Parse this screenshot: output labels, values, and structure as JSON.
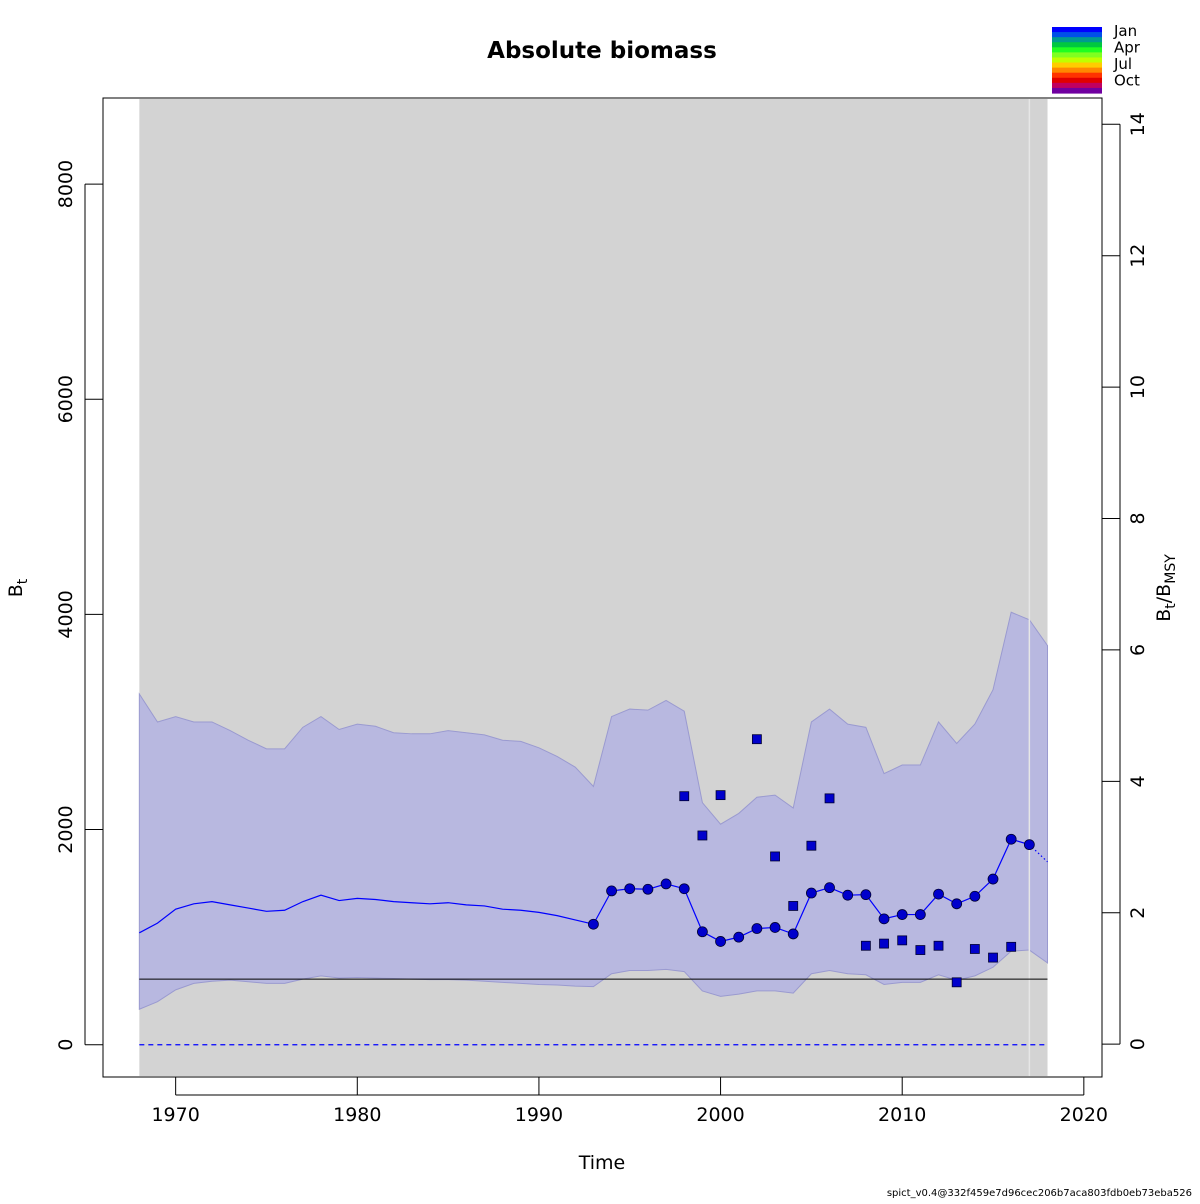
{
  "chart_data": {
    "type": "line",
    "title": "Absolute biomass",
    "xlabel": "Time",
    "ylabel": {
      "main": "B",
      "sub": "t"
    },
    "ylabel_right": {
      "main": "B",
      "sub": "t",
      "slash": "/",
      "main2": "B",
      "sub2": "MSY"
    },
    "xlim": [
      1966,
      2021
    ],
    "ylim": [
      -300,
      8800
    ],
    "ylim_right": [
      -0.5,
      14.4
    ],
    "x_ticks": [
      1970,
      1980,
      1990,
      2000,
      2010,
      2020
    ],
    "y_ticks": [
      0,
      2000,
      4000,
      6000,
      8000
    ],
    "y_ticks_right": [
      0,
      2,
      4,
      6,
      8,
      10,
      12,
      14
    ],
    "grey_region": {
      "x": [
        1968,
        2018
      ],
      "color": "#d3d3d3"
    },
    "vline_x": 2017,
    "bmsy_line": 610,
    "zero_line": 0,
    "estimate": {
      "x": [
        1968,
        1969,
        1970,
        1971,
        1972,
        1973,
        1974,
        1975,
        1976,
        1977,
        1978,
        1979,
        1980,
        1981,
        1982,
        1983,
        1984,
        1985,
        1986,
        1987,
        1988,
        1989,
        1990,
        1991,
        1992,
        1993,
        1994,
        1995,
        1996,
        1997,
        1998,
        1999,
        2000,
        2001,
        2002,
        2003,
        2004,
        2005,
        2006,
        2007,
        2008,
        2009,
        2010,
        2011,
        2012,
        2013,
        2014,
        2015,
        2016,
        2017
      ],
      "y": [
        1040,
        1130,
        1260,
        1310,
        1330,
        1300,
        1270,
        1240,
        1250,
        1330,
        1390,
        1340,
        1360,
        1350,
        1330,
        1320,
        1310,
        1320,
        1300,
        1290,
        1260,
        1250,
        1230,
        1200,
        1160,
        1120,
        1430,
        1450,
        1445,
        1495,
        1450,
        1050,
        960,
        1000,
        1080,
        1090,
        1030,
        1410,
        1460,
        1390,
        1395,
        1170,
        1210,
        1210,
        1400,
        1310,
        1380,
        1540,
        1910,
        1860
      ]
    },
    "forecast": {
      "x": [
        2017,
        2018
      ],
      "y": [
        1860,
        1700
      ]
    },
    "ci_upper": {
      "x": [
        1968,
        1969,
        1970,
        1971,
        1972,
        1973,
        1974,
        1975,
        1976,
        1977,
        1978,
        1979,
        1980,
        1981,
        1982,
        1983,
        1984,
        1985,
        1986,
        1987,
        1988,
        1989,
        1990,
        1991,
        1992,
        1993,
        1994,
        1995,
        1996,
        1997,
        1998,
        1999,
        2000,
        2001,
        2002,
        2003,
        2004,
        2005,
        2006,
        2007,
        2008,
        2009,
        2010,
        2011,
        2012,
        2013,
        2014,
        2015,
        2016,
        2017,
        2018
      ],
      "y": [
        3260,
        3000,
        3050,
        3000,
        3000,
        2920,
        2830,
        2750,
        2750,
        2950,
        3050,
        2930,
        2980,
        2960,
        2900,
        2890,
        2890,
        2920,
        2900,
        2880,
        2830,
        2820,
        2760,
        2680,
        2580,
        2400,
        3050,
        3120,
        3110,
        3200,
        3100,
        2250,
        2050,
        2150,
        2300,
        2320,
        2200,
        3000,
        3120,
        2980,
        2950,
        2520,
        2600,
        2600,
        3000,
        2800,
        2980,
        3300,
        4020,
        3950,
        3710
      ]
    },
    "ci_lower": {
      "x": [
        1968,
        1969,
        1970,
        1971,
        1972,
        1973,
        1974,
        1975,
        1976,
        1977,
        1978,
        1979,
        1980,
        1981,
        1982,
        1983,
        1984,
        1985,
        1986,
        1987,
        1988,
        1989,
        1990,
        1991,
        1992,
        1993,
        1994,
        1995,
        1996,
        1997,
        1998,
        1999,
        2000,
        2001,
        2002,
        2003,
        2004,
        2005,
        2006,
        2007,
        2008,
        2009,
        2010,
        2011,
        2012,
        2013,
        2014,
        2015,
        2016,
        2017,
        2018
      ],
      "y": [
        330,
        400,
        510,
        570,
        590,
        600,
        585,
        570,
        570,
        610,
        640,
        620,
        625,
        620,
        615,
        610,
        605,
        605,
        600,
        590,
        580,
        570,
        560,
        555,
        545,
        540,
        660,
        690,
        690,
        700,
        680,
        500,
        450,
        470,
        500,
        500,
        480,
        660,
        690,
        660,
        650,
        560,
        580,
        580,
        650,
        600,
        640,
        720,
        870,
        880,
        760
      ]
    },
    "observations": {
      "x": [
        1998,
        1999,
        2000,
        2002,
        2003,
        2004,
        2005,
        2006,
        2008,
        2009,
        2010,
        2011,
        2012,
        2013,
        2014,
        2015,
        2016
      ],
      "y": [
        2310,
        1945,
        2320,
        2840,
        1750,
        1290,
        1850,
        2290,
        920,
        940,
        970,
        880,
        920,
        580,
        890,
        810,
        910
      ]
    },
    "legend": {
      "labels": [
        "Jan",
        "Apr",
        "Jul",
        "Oct"
      ],
      "colors": [
        "#0000ff",
        "#0050e8",
        "#009a90",
        "#00c840",
        "#20ff20",
        "#80ff20",
        "#c0ff00",
        "#ffcc00",
        "#ff8800",
        "#ff3300",
        "#e00000",
        "#c00060",
        "#7000a0"
      ]
    },
    "colors": {
      "line": "#0000ff",
      "ci_fill": "#b8b8e0",
      "point": "#0000cc",
      "grey": "#d3d3d3",
      "bmsy": "#000000"
    }
  },
  "footer": "spict_v0.4@332f459e7d96cec206b7aca803fdb0eb73eba526"
}
